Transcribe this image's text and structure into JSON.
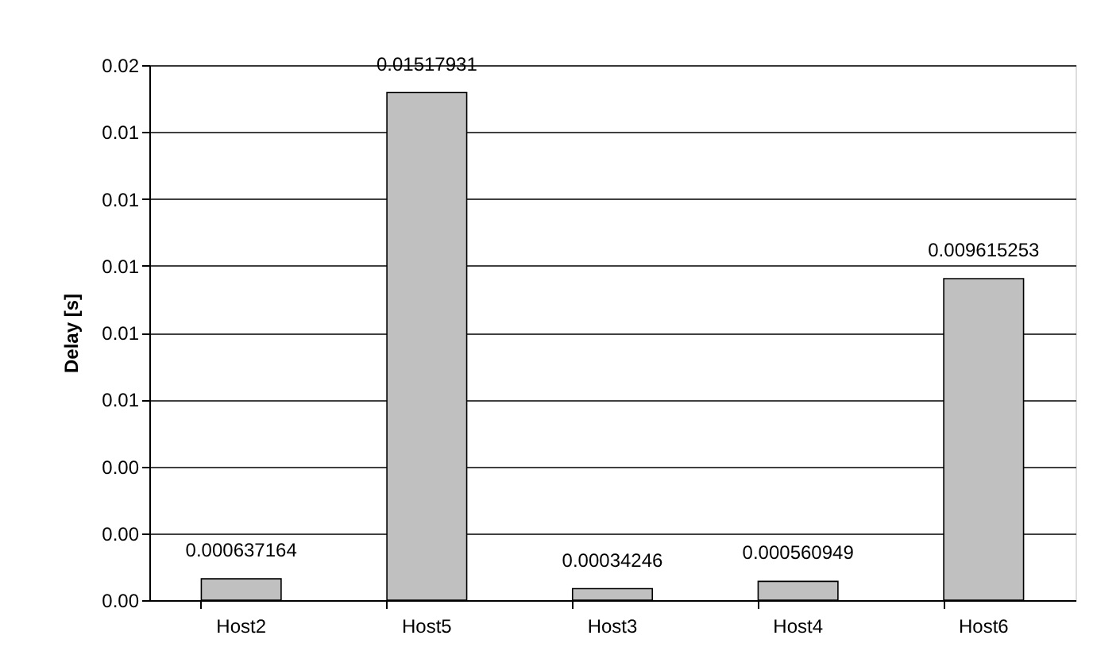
{
  "chart_data": {
    "type": "bar",
    "ylabel": "Delay [s]",
    "categories": [
      "Host2",
      "Host5",
      "Host3",
      "Host4",
      "Host6"
    ],
    "values": [
      0.000637164,
      0.01517931,
      0.00034246,
      0.000560949,
      0.009615253
    ],
    "color": "#c0c0c0",
    "ylim": [
      0,
      0.016
    ],
    "yticks": [
      {
        "value": 0,
        "label": "0.00"
      },
      {
        "value": 0.002,
        "label": "0.00"
      },
      {
        "value": 0.004,
        "label": "0.00"
      },
      {
        "value": 0.006,
        "label": "0.01"
      },
      {
        "value": 0.008,
        "label": "0.01"
      },
      {
        "value": 0.01,
        "label": "0.01"
      },
      {
        "value": 0.012,
        "label": "0.01"
      },
      {
        "value": 0.014,
        "label": "0.01"
      },
      {
        "value": 0.016,
        "label": "0.02"
      }
    ],
    "grid": "y",
    "data_labels": true
  }
}
